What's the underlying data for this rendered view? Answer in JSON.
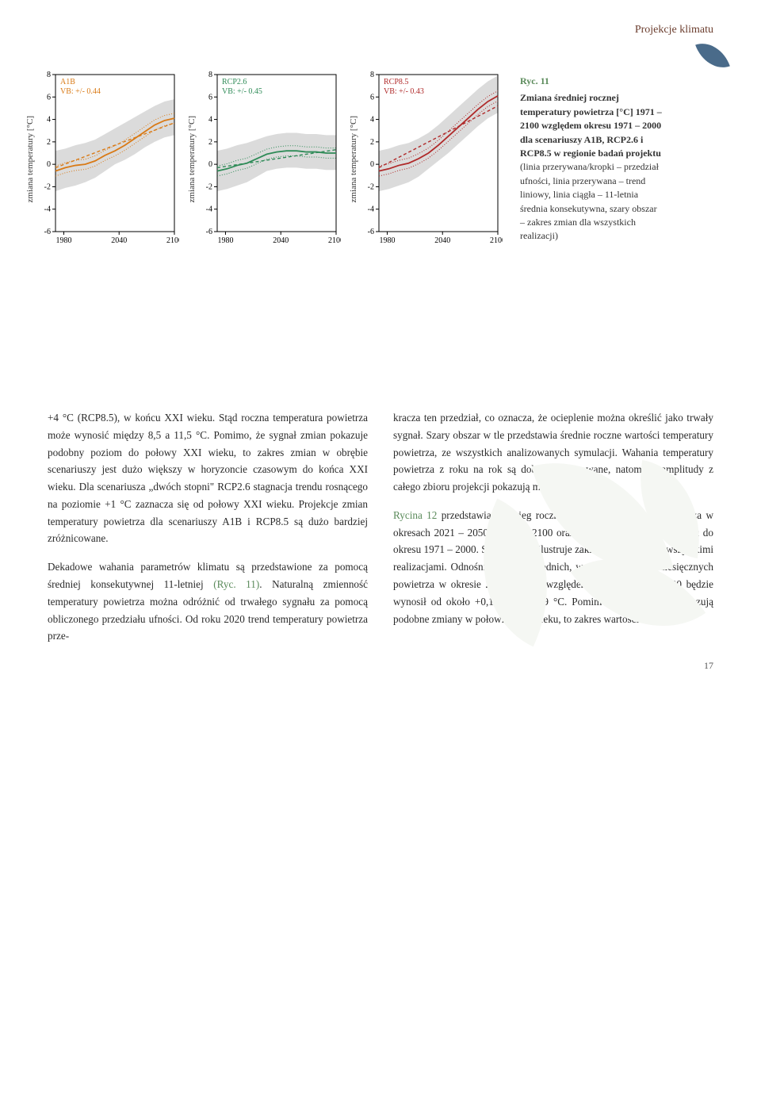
{
  "header": {
    "section_title": "Projekcje klimatu"
  },
  "figure": {
    "caption_num": "Ryc. 11",
    "caption_text": "Zmiana średniej rocznej temperatury powietrza [°C] 1971 – 2100 względem okresu 1971 – 2000 dla scenariuszy A1B, RCP2.6 i RCP8.5 w regionie badań projektu",
    "caption_legend": "(linia przerywana/kropki – przedział ufności, linia przerywana – trend liniowy, linia ciągła – 11-letnia średnia konsekutywna, szary obszar – zakres zmian dla wszystkich realizacji)",
    "ylabel": "zmiana temperatury [°C]",
    "charts": [
      {
        "scenario_label": "A1B",
        "vb_label": "VB: +/- 0.44",
        "color": "#d97a16",
        "xticks": [
          "1980",
          "2040",
          "2100"
        ],
        "yticks": [
          "-6",
          "-4",
          "-2",
          "0",
          "2",
          "4",
          "6",
          "8"
        ],
        "trend_y0": -0.3,
        "trend_y1": 3.7,
        "mean_pts": [
          -0.6,
          -0.3,
          -0.1,
          0.0,
          0.3,
          0.8,
          1.2,
          1.7,
          2.3,
          2.9,
          3.5,
          3.9,
          4.1
        ],
        "spread_lo": [
          -2.4,
          -2.1,
          -1.9,
          -1.6,
          -1.2,
          -0.6,
          0.0,
          0.4,
          0.9,
          1.5,
          2.0,
          2.4,
          2.6
        ],
        "spread_hi": [
          1.2,
          1.4,
          1.7,
          1.9,
          2.2,
          2.7,
          3.2,
          3.7,
          4.2,
          4.7,
          5.2,
          5.6,
          5.8
        ]
      },
      {
        "scenario_label": "RCP2.6",
        "vb_label": "VB: +/- 0.45",
        "color": "#2e8b57",
        "xticks": [
          "1980",
          "2040",
          "2100"
        ],
        "yticks": [
          "-6",
          "-4",
          "-2",
          "0",
          "2",
          "4",
          "6",
          "8"
        ],
        "trend_y0": -0.3,
        "trend_y1": 1.3,
        "mean_pts": [
          -0.6,
          -0.4,
          -0.1,
          0.1,
          0.5,
          0.9,
          1.1,
          1.2,
          1.2,
          1.1,
          1.1,
          1.0,
          1.0
        ],
        "spread_lo": [
          -2.4,
          -2.2,
          -1.9,
          -1.6,
          -1.1,
          -0.6,
          -0.4,
          -0.3,
          -0.3,
          -0.4,
          -0.4,
          -0.5,
          -0.5
        ],
        "spread_hi": [
          1.2,
          1.4,
          1.7,
          1.9,
          2.2,
          2.5,
          2.7,
          2.8,
          2.8,
          2.7,
          2.7,
          2.6,
          2.6
        ]
      },
      {
        "scenario_label": "RCP8.5",
        "vb_label": "VB: +/- 0.43",
        "color": "#b02a2a",
        "xticks": [
          "1980",
          "2040",
          "2100"
        ],
        "yticks": [
          "-6",
          "-4",
          "-2",
          "0",
          "2",
          "4",
          "6",
          "8"
        ],
        "trend_y0": -0.3,
        "trend_y1": 5.2,
        "mean_pts": [
          -0.6,
          -0.4,
          -0.1,
          0.1,
          0.5,
          1.0,
          1.7,
          2.5,
          3.3,
          4.1,
          4.9,
          5.6,
          6.1
        ],
        "spread_lo": [
          -2.4,
          -2.2,
          -1.9,
          -1.6,
          -1.1,
          -0.4,
          0.3,
          1.0,
          1.8,
          2.6,
          3.4,
          4.1,
          4.6
        ],
        "spread_hi": [
          1.2,
          1.4,
          1.7,
          1.9,
          2.3,
          2.8,
          3.5,
          4.3,
          5.1,
          5.9,
          6.7,
          7.4,
          7.9
        ]
      }
    ],
    "chart_style": {
      "x_range": [
        1971,
        2100
      ],
      "y_range": [
        -6,
        8
      ],
      "band_color": "#bdbdbd",
      "band_opacity": 0.55,
      "axis_color": "#000000",
      "tick_color": "#000000",
      "tick_fontsize": 10,
      "label_fontsize": 11,
      "legend_fontsize": 10,
      "trend_dash": "4,3",
      "ci_dash": "1,2"
    }
  },
  "body": {
    "left": {
      "p1": "+4 °C (RCP8.5), w końcu XXI wieku. Stąd roczna temperatura powietrza może wynosić między 8,5 a 11,5 °C. Pomimo, że sygnał zmian pokazuje podobny poziom do połowy XXI wieku, to zakres zmian w obrębie scenariuszy jest dużo większy w horyzoncie czasowym do końca XXI wieku. Dla scenariusza „dwóch stopni\" RCP2.6 stagnacja trendu rosnącego na poziomie +1 °C zaznacza się od połowy XXI wieku. Projekcje zmian temperatury powietrza dla scenariuszy A1B i RCP8.5 są dużo bardziej zróżnicowane.",
      "p2a": "Dekadowe wahania parametrów klimatu są przedstawione za pomocą średniej konsekutywnej 11-letniej ",
      "p2_ref": "(Ryc. 11)",
      "p2b": ". Naturalną zmienność temperatury powietrza można odróżnić od trwałego sygnału za pomocą obliczonego przedziału ufności. Od roku 2020 trend temperatury powietrza prze-"
    },
    "right": {
      "p1": "kracza ten przedział, co oznacza, że ocieplenie można określić jako trwały sygnał. Szary obszar w tle przedstawia średnie roczne wartości temperatury powietrza, ze wszystkich analizowanych symulacji. Wahania temperatury powietrza z roku na rok są dobrze zilustrowane, natomiast amplitudy z całego zbioru projekcji pokazują małe zmiany.",
      "p2_ref": "Rycina 12",
      "p2": " przedstawia przebieg roczny średniej temperatury powietrza w okresach 2021 – 2050 i 2071 – 2100 oraz sygnał zmian w porównaniu do okresu 1971 – 2000. Szary obszar ilustruje zakres zmian między wszystkimi realizacjami. Odnośnie wartości średnich, wzrost temperatur miesięcznych powietrza w okresie 2021 – 2050 względem okresu 1971 – 2000 będzie wynosił od około +0,1 °C do +1,9 °C. Pomimo, że symulacje pokazują podobne zmiany w połowie XXI wieku, to zakres wartości"
    }
  },
  "page_number": "17"
}
